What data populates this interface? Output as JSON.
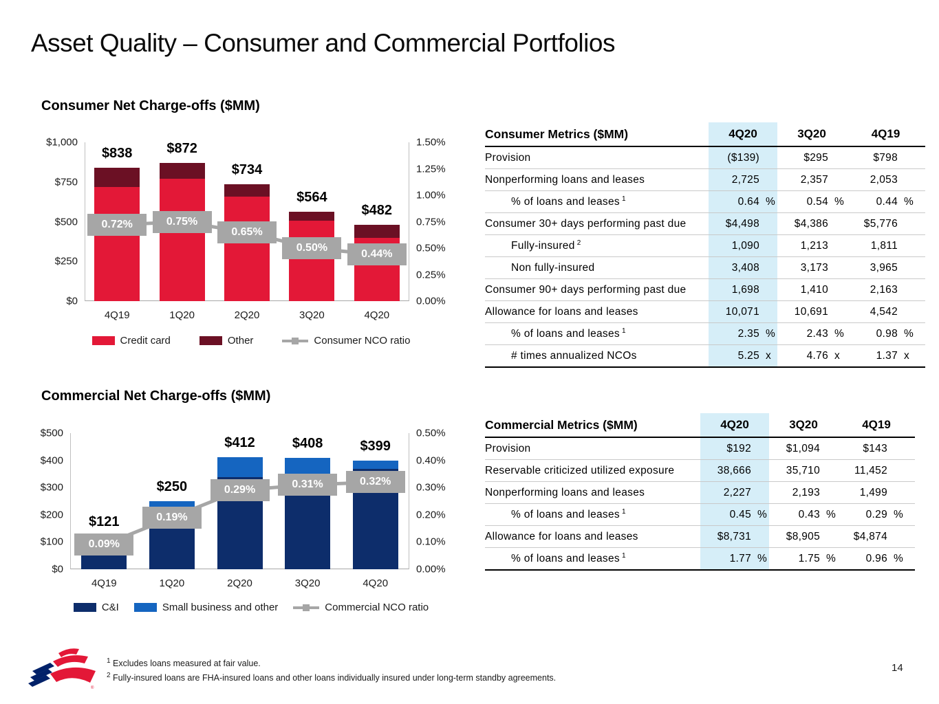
{
  "slide": {
    "title": "Asset Quality – Consumer and Commercial Portfolios",
    "page_number": "14",
    "footnotes": [
      {
        "marker": "1",
        "text": "Excludes loans measured at fair value."
      },
      {
        "marker": "2",
        "text": "Fully-insured loans are FHA-insured loans and other loans individually insured under long-term standby agreements."
      }
    ],
    "logo": "bank-of-america-flag-logo"
  },
  "chart_data": [
    {
      "id": "consumer-nco-chart",
      "type": "bar",
      "subtype": "stacked-bars-with-line-overlay",
      "title": "Consumer Net Charge-offs ($MM)",
      "categories": [
        "4Q19",
        "1Q20",
        "2Q20",
        "3Q20",
        "4Q20"
      ],
      "series": [
        {
          "name": "Credit card",
          "role": "bar",
          "color": "#E31837",
          "values": [
            720,
            770,
            658,
            505,
            400
          ]
        },
        {
          "name": "Other",
          "role": "bar",
          "color": "#6B1024",
          "values": [
            118,
            102,
            76,
            59,
            82
          ]
        },
        {
          "name": "Consumer NCO ratio",
          "role": "line",
          "axis": "right",
          "color": "#A6A6A6",
          "values": [
            0.72,
            0.75,
            0.65,
            0.5,
            0.44
          ],
          "point_labels": [
            "0.72%",
            "0.75%",
            "0.65%",
            "0.50%",
            "0.44%"
          ]
        }
      ],
      "bar_total_labels": [
        "$838",
        "$872",
        "$734",
        "$564",
        "$482"
      ],
      "left_axis": {
        "min": 0,
        "max": 1000,
        "tick_labels": [
          "$1,000",
          "$750",
          "$500",
          "$250",
          "$0"
        ]
      },
      "right_axis": {
        "min": 0,
        "max": 1.5,
        "tick_labels": [
          "1.50%",
          "1.25%",
          "1.00%",
          "0.75%",
          "0.50%",
          "0.25%",
          "0.00%"
        ]
      },
      "legend_position": "bottom",
      "grid": false
    },
    {
      "id": "commercial-nco-chart",
      "type": "bar",
      "subtype": "stacked-bars-with-line-overlay",
      "title": "Commercial Net Charge-offs ($MM)",
      "categories": [
        "4Q19",
        "1Q20",
        "2Q20",
        "3Q20",
        "4Q20"
      ],
      "series": [
        {
          "name": "C&I",
          "role": "bar",
          "color": "#0D2D6B",
          "values": [
            100,
            217,
            338,
            351,
            369
          ]
        },
        {
          "name": "Small business and other",
          "role": "bar",
          "color": "#1565C0",
          "values": [
            21,
            33,
            74,
            57,
            30
          ]
        },
        {
          "name": "Commercial NCO ratio",
          "role": "line",
          "axis": "right",
          "color": "#A6A6A6",
          "values": [
            0.09,
            0.19,
            0.29,
            0.31,
            0.32
          ],
          "point_labels": [
            "0.09%",
            "0.19%",
            "0.29%",
            "0.31%",
            "0.32%"
          ]
        }
      ],
      "bar_total_labels": [
        "$121",
        "$250",
        "$412",
        "$408",
        "$399"
      ],
      "left_axis": {
        "min": 0,
        "max": 500,
        "tick_labels": [
          "$500",
          "$400",
          "$300",
          "$200",
          "$100",
          "$0"
        ]
      },
      "right_axis": {
        "min": 0,
        "max": 0.5,
        "tick_labels": [
          "0.50%",
          "0.40%",
          "0.30%",
          "0.20%",
          "0.10%",
          "0.00%"
        ]
      },
      "legend_position": "bottom",
      "grid": false
    }
  ],
  "tables": [
    {
      "id": "consumer-metrics",
      "title": "Consumer Metrics ($MM)",
      "columns": [
        "4Q20",
        "3Q20",
        "4Q19"
      ],
      "highlight_column": "4Q20",
      "highlight_color": "#D6EEF8",
      "rows": [
        {
          "label": "Provision",
          "values": [
            {
              "v": "($139)"
            },
            {
              "v": "$295"
            },
            {
              "v": "$798"
            }
          ]
        },
        {
          "label": "Nonperforming loans and leases",
          "values": [
            {
              "v": "2,725"
            },
            {
              "v": "2,357"
            },
            {
              "v": "2,053"
            }
          ]
        },
        {
          "label": "% of loans and leases",
          "sup": "1",
          "indent": true,
          "values": [
            {
              "v": "0.64",
              "u": "%"
            },
            {
              "v": "0.54",
              "u": "%"
            },
            {
              "v": "0.44",
              "u": "%"
            }
          ]
        },
        {
          "label": "Consumer 30+ days performing past due",
          "values": [
            {
              "v": "$4,498"
            },
            {
              "v": "$4,386"
            },
            {
              "v": "$5,776"
            }
          ]
        },
        {
          "label": "Fully-insured",
          "sup": "2",
          "indent": true,
          "values": [
            {
              "v": "1,090"
            },
            {
              "v": "1,213"
            },
            {
              "v": "1,811"
            }
          ]
        },
        {
          "label": "Non fully-insured",
          "indent": true,
          "values": [
            {
              "v": "3,408"
            },
            {
              "v": "3,173"
            },
            {
              "v": "3,965"
            }
          ]
        },
        {
          "label": "Consumer 90+ days performing past due",
          "values": [
            {
              "v": "1,698"
            },
            {
              "v": "1,410"
            },
            {
              "v": "2,163"
            }
          ]
        },
        {
          "label": "Allowance for loans and leases",
          "values": [
            {
              "v": "10,071"
            },
            {
              "v": "10,691"
            },
            {
              "v": "4,542"
            }
          ]
        },
        {
          "label": "% of loans and leases",
          "sup": "1",
          "indent": true,
          "values": [
            {
              "v": "2.35",
              "u": "%"
            },
            {
              "v": "2.43",
              "u": "%"
            },
            {
              "v": "0.98",
              "u": "%"
            }
          ]
        },
        {
          "label": "# times annualized NCOs",
          "indent": true,
          "values": [
            {
              "v": "5.25",
              "u": "x"
            },
            {
              "v": "4.76",
              "u": "x"
            },
            {
              "v": "1.37",
              "u": "x"
            }
          ]
        }
      ]
    },
    {
      "id": "commercial-metrics",
      "title": "Commercial Metrics ($MM)",
      "columns": [
        "4Q20",
        "3Q20",
        "4Q19"
      ],
      "highlight_column": "4Q20",
      "highlight_color": "#D6EEF8",
      "rows": [
        {
          "label": "Provision",
          "values": [
            {
              "v": "$192"
            },
            {
              "v": "$1,094"
            },
            {
              "v": "$143"
            }
          ]
        },
        {
          "label": "Reservable criticized utilized exposure",
          "values": [
            {
              "v": "38,666"
            },
            {
              "v": "35,710"
            },
            {
              "v": "11,452"
            }
          ]
        },
        {
          "label": "Nonperforming loans and leases",
          "values": [
            {
              "v": "2,227"
            },
            {
              "v": "2,193"
            },
            {
              "v": "1,499"
            }
          ]
        },
        {
          "label": "% of loans and leases",
          "sup": "1",
          "indent": true,
          "values": [
            {
              "v": "0.45",
              "u": "%"
            },
            {
              "v": "0.43",
              "u": "%"
            },
            {
              "v": "0.29",
              "u": "%"
            }
          ]
        },
        {
          "label": "Allowance for loans and leases",
          "values": [
            {
              "v": "$8,731"
            },
            {
              "v": "$8,905"
            },
            {
              "v": "$4,874"
            }
          ]
        },
        {
          "label": "% of loans and leases",
          "sup": "1",
          "indent": true,
          "values": [
            {
              "v": "1.77",
              "u": "%"
            },
            {
              "v": "1.75",
              "u": "%"
            },
            {
              "v": "0.96",
              "u": "%"
            }
          ]
        }
      ]
    }
  ]
}
